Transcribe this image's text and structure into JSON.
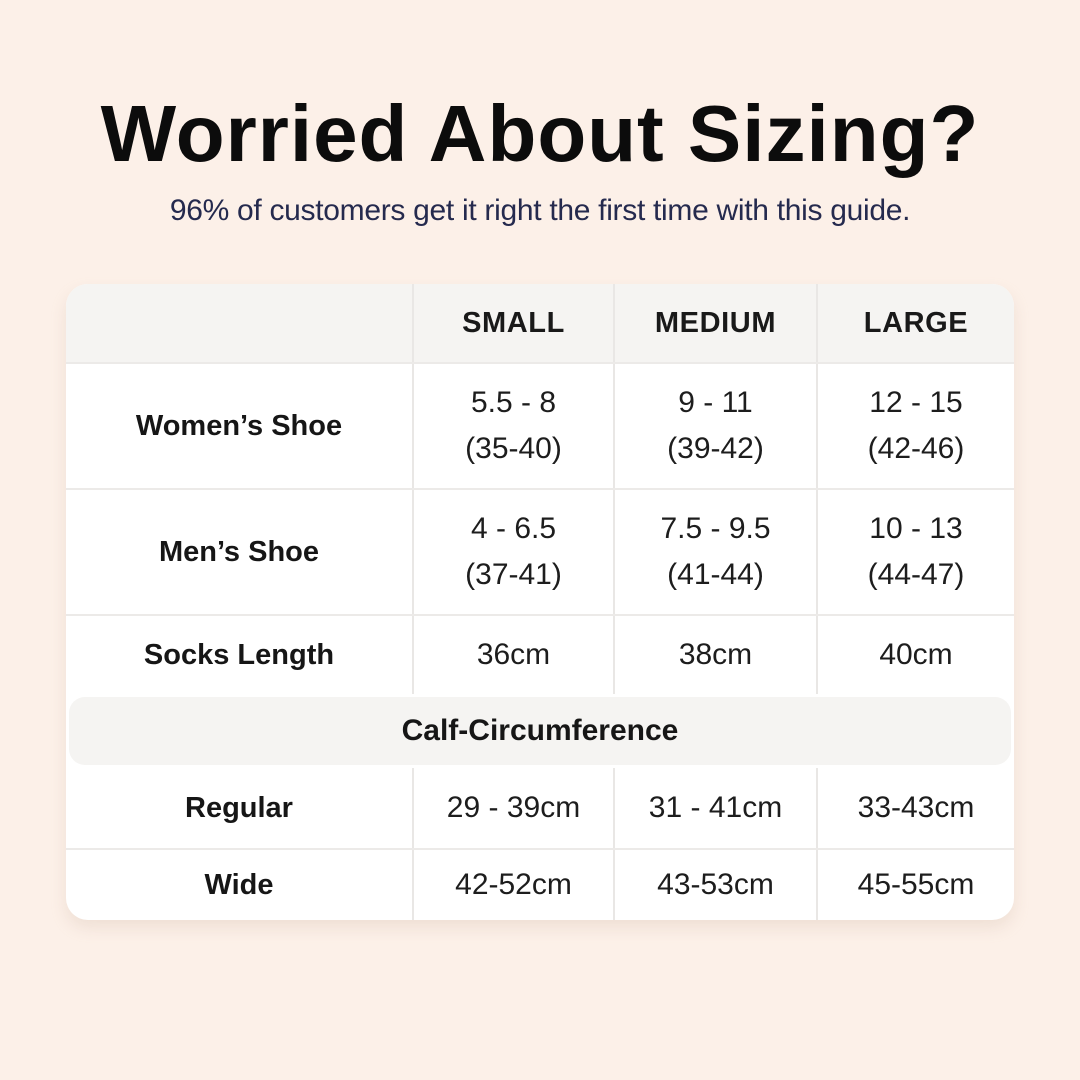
{
  "page": {
    "title": "Worried About Sizing?",
    "subtitle": "96% of customers get it right the first time with this guide."
  },
  "colors": {
    "background": "#fcf0e8",
    "title_text": "#0c0c0c",
    "subtitle_text": "#252a4e",
    "card_background": "#ffffff",
    "header_band_background": "#f5f4f2",
    "divider": "#e9e7e5",
    "cell_text": "#1d1d1d"
  },
  "table": {
    "corner_label": "",
    "headers": [
      "SMALL",
      "MEDIUM",
      "LARGE"
    ],
    "rows": [
      {
        "label": "Women’s Shoe",
        "cells": [
          [
            "5.5 - 8",
            "(35-40)"
          ],
          [
            "9 - 11",
            "(39-42)"
          ],
          [
            "12 - 15",
            "(42-46)"
          ]
        ]
      },
      {
        "label": "Men’s Shoe",
        "cells": [
          [
            "4 - 6.5",
            "(37-41)"
          ],
          [
            "7.5 - 9.5",
            "(41-44)"
          ],
          [
            "10 - 13",
            "(44-47)"
          ]
        ]
      },
      {
        "label": "Socks Length",
        "cells": [
          [
            "36cm"
          ],
          [
            "38cm"
          ],
          [
            "40cm"
          ]
        ]
      }
    ],
    "section_header": "Calf-Circumference",
    "section_rows": [
      {
        "label": "Regular",
        "cells": [
          "29 - 39cm",
          "31 - 41cm",
          "33-43cm"
        ]
      },
      {
        "label": "Wide",
        "cells": [
          "42-52cm",
          "43-53cm",
          "45-55cm"
        ]
      }
    ]
  },
  "chart_data": {
    "type": "table",
    "title": "Worried About Sizing?",
    "subtitle": "96% of customers get it right the first time with this guide.",
    "columns": [
      "",
      "SMALL",
      "MEDIUM",
      "LARGE"
    ],
    "sections": [
      {
        "header": null,
        "rows": [
          [
            "Women’s Shoe",
            "5.5 - 8 (35-40)",
            "9 - 11 (39-42)",
            "12 - 15 (42-46)"
          ],
          [
            "Men’s Shoe",
            "4 - 6.5 (37-41)",
            "7.5 - 9.5 (41-44)",
            "10 - 13 (44-47)"
          ],
          [
            "Socks Length",
            "36cm",
            "38cm",
            "40cm"
          ]
        ]
      },
      {
        "header": "Calf-Circumference",
        "rows": [
          [
            "Regular",
            "29 - 39cm",
            "31 - 41cm",
            "33-43cm"
          ],
          [
            "Wide",
            "42-52cm",
            "43-53cm",
            "45-55cm"
          ]
        ]
      }
    ]
  }
}
